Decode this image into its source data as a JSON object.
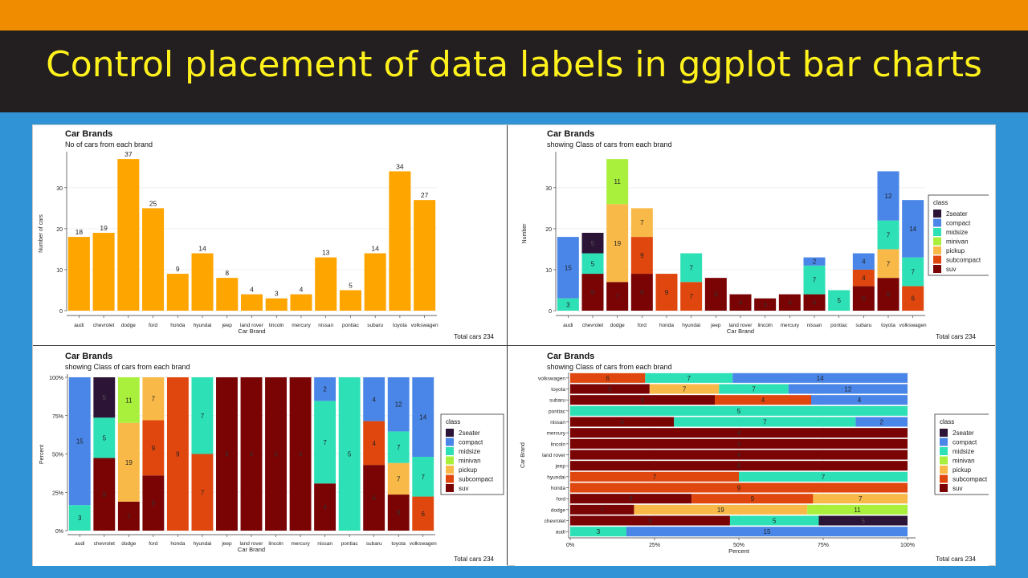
{
  "header": {
    "title": "Control placement of data labels in ggplot bar charts"
  },
  "colors": {
    "orange_bar": "#f08c00",
    "dark_bar": "#231f20",
    "title_yellow": "#fff21c",
    "background_blue": "#2f93d6",
    "bar_fill": "#ffa500"
  },
  "class_colors": {
    "2seater": "#2c1436",
    "compact": "#4a86e8",
    "midsize": "#2de0b6",
    "minivan": "#a8f03c",
    "pickup": "#f8b948",
    "subcompact": "#e0470f",
    "suv": "#7a0303"
  },
  "panels": [
    {
      "title": "Car Brands",
      "subtitle": "No of cars from each brand",
      "caption": "Total cars 234"
    },
    {
      "title": "Car Brands",
      "subtitle": "showing Class of cars from each brand",
      "caption": "Total cars 234"
    },
    {
      "title": "Car Brands",
      "subtitle": "showing Class of cars from each brand",
      "caption": "Total cars 234"
    },
    {
      "title": "Car Brands",
      "subtitle": "showing Class of cars from each brand",
      "caption": "Total cars 234"
    }
  ],
  "chart_data": [
    {
      "type": "bar",
      "title": "Car Brands",
      "subtitle": "No of cars from each brand",
      "xlabel": "Car Brand",
      "ylabel": "Number of cars",
      "caption": "Total cars 234",
      "categories": [
        "audi",
        "chevrolet",
        "dodge",
        "ford",
        "honda",
        "hyundai",
        "jeep",
        "land rover",
        "lincoln",
        "mercury",
        "nissan",
        "pontiac",
        "subaru",
        "toyota",
        "volkswagen"
      ],
      "values": [
        18,
        19,
        37,
        25,
        9,
        14,
        8,
        4,
        3,
        4,
        13,
        5,
        14,
        34,
        27
      ],
      "yticks": [
        0,
        10,
        20,
        30
      ],
      "ylim": [
        0,
        38
      ],
      "grid": true
    },
    {
      "type": "bar",
      "stacked": true,
      "title": "Car Brands",
      "subtitle": "showing Class of cars from each brand",
      "xlabel": "Car Brand",
      "ylabel": "Number",
      "caption": "Total cars 234",
      "legend_title": "class",
      "legend_position": "right",
      "categories": [
        "audi",
        "chevrolet",
        "dodge",
        "ford",
        "honda",
        "hyundai",
        "jeep",
        "land rover",
        "lincoln",
        "mercury",
        "nissan",
        "pontiac",
        "subaru",
        "toyota",
        "volkswagen"
      ],
      "series": [
        {
          "name": "2seater",
          "values": [
            0,
            5,
            0,
            0,
            0,
            0,
            0,
            0,
            0,
            0,
            0,
            0,
            0,
            0,
            0
          ]
        },
        {
          "name": "compact",
          "values": [
            15,
            0,
            0,
            0,
            0,
            0,
            0,
            0,
            0,
            0,
            2,
            0,
            4,
            12,
            14
          ]
        },
        {
          "name": "midsize",
          "values": [
            3,
            5,
            0,
            0,
            0,
            7,
            0,
            0,
            0,
            0,
            7,
            5,
            0,
            7,
            7
          ]
        },
        {
          "name": "minivan",
          "values": [
            0,
            0,
            11,
            0,
            0,
            0,
            0,
            0,
            0,
            0,
            0,
            0,
            0,
            0,
            0
          ]
        },
        {
          "name": "pickup",
          "values": [
            0,
            0,
            19,
            7,
            0,
            0,
            0,
            0,
            0,
            0,
            0,
            0,
            0,
            7,
            0
          ]
        },
        {
          "name": "subcompact",
          "values": [
            0,
            0,
            0,
            9,
            9,
            7,
            0,
            0,
            0,
            0,
            0,
            0,
            4,
            0,
            6
          ]
        },
        {
          "name": "suv",
          "values": [
            0,
            9,
            7,
            9,
            0,
            0,
            8,
            4,
            3,
            4,
            4,
            0,
            6,
            8,
            0
          ]
        }
      ],
      "yticks": [
        0,
        10,
        20,
        30
      ],
      "ylim": [
        0,
        38
      ],
      "grid": true
    },
    {
      "type": "bar",
      "stacked": true,
      "normalized": true,
      "title": "Car Brands",
      "subtitle": "showing Class of cars from each brand",
      "xlabel": "Car Brand",
      "ylabel": "Percent",
      "caption": "Total cars 234",
      "legend_title": "class",
      "legend_position": "right",
      "categories": [
        "audi",
        "chevrolet",
        "dodge",
        "ford",
        "honda",
        "hyundai",
        "jeep",
        "land rover",
        "lincoln",
        "mercury",
        "nissan",
        "pontiac",
        "subaru",
        "toyota",
        "volkswagen"
      ],
      "series": [
        {
          "name": "2seater",
          "values": [
            0,
            5,
            0,
            0,
            0,
            0,
            0,
            0,
            0,
            0,
            0,
            0,
            0,
            0,
            0
          ]
        },
        {
          "name": "compact",
          "values": [
            15,
            0,
            0,
            0,
            0,
            0,
            0,
            0,
            0,
            0,
            2,
            0,
            4,
            12,
            14
          ]
        },
        {
          "name": "midsize",
          "values": [
            3,
            5,
            0,
            0,
            0,
            7,
            0,
            0,
            0,
            0,
            7,
            5,
            0,
            7,
            7
          ]
        },
        {
          "name": "minivan",
          "values": [
            0,
            0,
            11,
            0,
            0,
            0,
            0,
            0,
            0,
            0,
            0,
            0,
            0,
            0,
            0
          ]
        },
        {
          "name": "pickup",
          "values": [
            0,
            0,
            19,
            7,
            0,
            0,
            0,
            0,
            0,
            0,
            0,
            0,
            0,
            7,
            0
          ]
        },
        {
          "name": "subcompact",
          "values": [
            0,
            0,
            0,
            9,
            9,
            7,
            0,
            0,
            0,
            0,
            0,
            0,
            4,
            0,
            6
          ]
        },
        {
          "name": "suv",
          "values": [
            0,
            9,
            7,
            9,
            0,
            0,
            8,
            4,
            3,
            4,
            4,
            0,
            6,
            8,
            0
          ]
        }
      ],
      "yticks": [
        "0%",
        "25%",
        "50%",
        "75%",
        "100%"
      ],
      "ylim": [
        0,
        1
      ],
      "grid": true
    },
    {
      "type": "bar",
      "stacked": true,
      "normalized": true,
      "orientation": "horizontal",
      "title": "Car Brands",
      "subtitle": "showing Class of cars from each brand",
      "xlabel": "Percent",
      "ylabel": "Car Brand",
      "caption": "Total cars 234",
      "legend_title": "class",
      "legend_position": "right",
      "categories": [
        "audi",
        "chevrolet",
        "dodge",
        "ford",
        "honda",
        "hyundai",
        "jeep",
        "land rover",
        "lincoln",
        "mercury",
        "nissan",
        "pontiac",
        "subaru",
        "toyota",
        "volkswagen"
      ],
      "series": [
        {
          "name": "2seater",
          "values": [
            0,
            5,
            0,
            0,
            0,
            0,
            0,
            0,
            0,
            0,
            0,
            0,
            0,
            0,
            0
          ]
        },
        {
          "name": "compact",
          "values": [
            15,
            0,
            0,
            0,
            0,
            0,
            0,
            0,
            0,
            0,
            2,
            0,
            4,
            12,
            14
          ]
        },
        {
          "name": "midsize",
          "values": [
            3,
            5,
            0,
            0,
            0,
            7,
            0,
            0,
            0,
            0,
            7,
            5,
            0,
            7,
            7
          ]
        },
        {
          "name": "minivan",
          "values": [
            0,
            0,
            11,
            0,
            0,
            0,
            0,
            0,
            0,
            0,
            0,
            0,
            0,
            0,
            0
          ]
        },
        {
          "name": "pickup",
          "values": [
            0,
            0,
            19,
            7,
            0,
            0,
            0,
            0,
            0,
            0,
            0,
            0,
            0,
            7,
            0
          ]
        },
        {
          "name": "subcompact",
          "values": [
            0,
            0,
            0,
            9,
            9,
            7,
            0,
            0,
            0,
            0,
            0,
            0,
            4,
            0,
            6
          ]
        },
        {
          "name": "suv",
          "values": [
            0,
            9,
            7,
            9,
            0,
            0,
            8,
            4,
            3,
            4,
            4,
            0,
            6,
            8,
            0
          ]
        }
      ],
      "xticks": [
        "0%",
        "25%",
        "50%",
        "75%",
        "100%"
      ],
      "xlim": [
        0,
        1
      ],
      "grid": true
    }
  ]
}
